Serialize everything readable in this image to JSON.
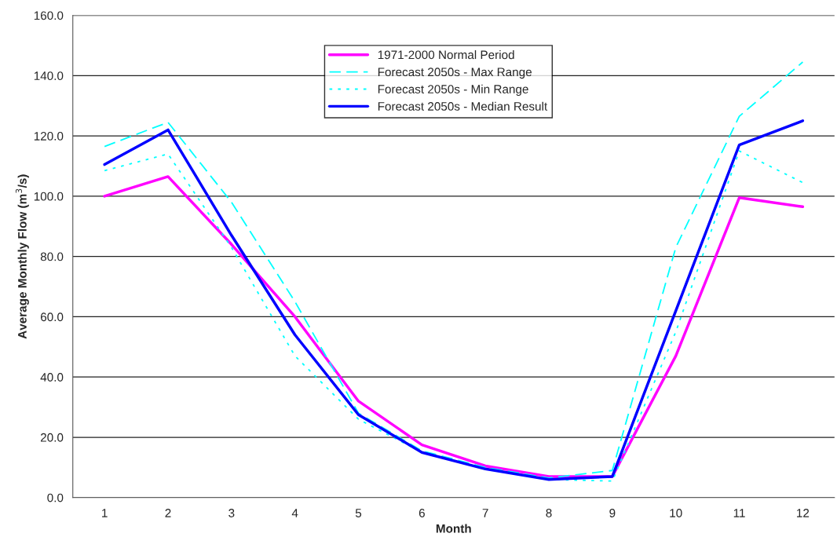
{
  "chart_data": {
    "type": "line",
    "xlabel": "Month",
    "ylabel": "Average Monthly Flow (m$^{3}$/s)",
    "categories": [
      "1",
      "2",
      "3",
      "4",
      "5",
      "6",
      "7",
      "8",
      "9",
      "10",
      "11",
      "12"
    ],
    "series": [
      {
        "name": "1971-2000 Normal Period",
        "color": "#ff00ff",
        "line_style": "solid",
        "values": [
          100,
          106.5,
          84,
          60,
          32,
          17.5,
          10.5,
          7,
          7,
          47,
          99.5,
          96.5
        ]
      },
      {
        "name": "Forecast 2050s - Max Range",
        "color": "#00ffff",
        "line_style": "dashed",
        "values": [
          116.5,
          124.5,
          98,
          65,
          28,
          15.5,
          10,
          6.5,
          9,
          83,
          126.5,
          144.5
        ]
      },
      {
        "name": "Forecast 2050s - Min Range",
        "color": "#00ffff",
        "line_style": "dotted",
        "values": [
          108.5,
          114,
          83,
          47,
          26,
          15,
          9.5,
          6,
          5.5,
          55,
          115,
          104.5
        ]
      },
      {
        "name": "Forecast 2050s - Median Result",
        "color": "#0000ff",
        "line_style": "solid",
        "values": [
          110.5,
          122,
          87,
          54,
          27.5,
          15,
          9.5,
          6,
          7,
          62,
          117,
          125
        ]
      }
    ],
    "ylim": [
      0,
      160
    ],
    "yticks": [
      {
        "value": 0,
        "label": "0.0"
      },
      {
        "value": 20,
        "label": "20.0"
      },
      {
        "value": 40,
        "label": "40.0"
      },
      {
        "value": 60,
        "label": "60.0"
      },
      {
        "value": 80,
        "label": "80.0"
      },
      {
        "value": 100,
        "label": "100.0"
      },
      {
        "value": 120,
        "label": "120.0"
      },
      {
        "value": 140,
        "label": "140.0"
      },
      {
        "value": 160,
        "label": "160.0"
      }
    ],
    "grid": "y",
    "legend": "top",
    "marker": "none"
  }
}
